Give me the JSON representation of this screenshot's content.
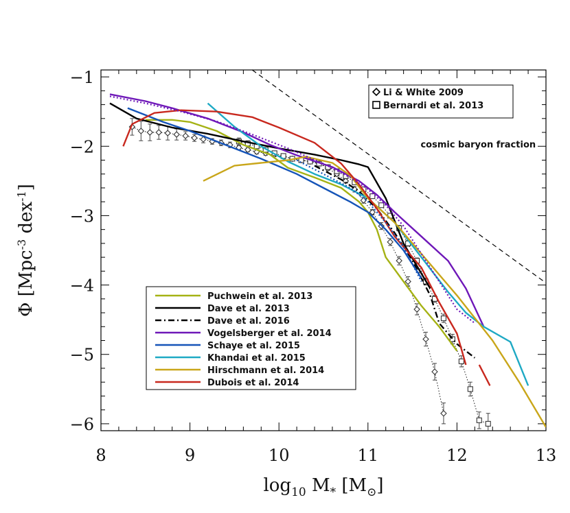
{
  "chart_data": {
    "type": "line",
    "title": "",
    "xlabel_parts": {
      "pre": "log",
      "sub": "10",
      "mid": " M",
      "star": "*",
      "post": " [M",
      "sun": "⊙",
      "end": "]"
    },
    "ylabel_parts": {
      "pre": "Φ [Mpc",
      "sup1": "-3",
      "mid": " dex",
      "sup2": "-1",
      "end": "]"
    },
    "xlim": [
      8,
      13
    ],
    "ylim": [
      -6.1,
      -0.9
    ],
    "xticks": [
      8,
      9,
      10,
      11,
      12,
      13
    ],
    "xtick_labels": [
      "8",
      "9",
      "10",
      "11",
      "12",
      "13"
    ],
    "yticks": [
      -1,
      -2,
      -3,
      -4,
      -5,
      -6
    ],
    "ytick_labels": [
      "−1",
      "−2",
      "−3",
      "−4",
      "−5",
      "−6"
    ],
    "annotation": {
      "text": "cosmic baryon fraction",
      "x": 11.9,
      "y": -1.97
    },
    "baryon_line": {
      "x": [
        9.7,
        13.0
      ],
      "y": [
        -0.9,
        -3.97
      ]
    },
    "legend_obs": [
      {
        "label": "Li & White 2009",
        "marker": "diamond"
      },
      {
        "label": "Bernardi et al. 2013",
        "marker": "square"
      }
    ],
    "series": [
      {
        "name": "Puchwein et al. 2013",
        "color": "#a5b214",
        "dash": "solid",
        "x": [
          8.5,
          8.8,
          9.0,
          9.3,
          9.6,
          9.9,
          10.1,
          10.4,
          10.7,
          10.9,
          11.0,
          11.1,
          11.2,
          11.4,
          11.6,
          11.8,
          12.0
        ],
        "y": [
          -1.62,
          -1.62,
          -1.65,
          -1.78,
          -1.98,
          -2.12,
          -2.31,
          -2.45,
          -2.6,
          -2.8,
          -2.95,
          -3.2,
          -3.6,
          -3.95,
          -4.3,
          -4.6,
          -4.95
        ]
      },
      {
        "name": "Dave et al. 2013",
        "color": "#000000",
        "dash": "solid",
        "x": [
          8.1,
          8.4,
          8.8,
          9.2,
          9.6,
          10.0,
          10.4,
          10.7,
          10.9,
          11.0,
          11.2,
          11.4,
          11.7
        ],
        "y": [
          -1.38,
          -1.6,
          -1.73,
          -1.82,
          -1.93,
          -2.03,
          -2.12,
          -2.2,
          -2.26,
          -2.3,
          -2.75,
          -3.4,
          -4.05
        ]
      },
      {
        "name": "Dave et al. 2016",
        "color": "#000000",
        "dash": "dashdot",
        "x": [
          10.4,
          10.7,
          10.9,
          11.1,
          11.3,
          11.5,
          11.7,
          11.8,
          12.0,
          12.2
        ],
        "y": [
          -2.28,
          -2.48,
          -2.65,
          -2.9,
          -3.25,
          -3.65,
          -4.15,
          -4.55,
          -4.85,
          -5.05
        ]
      },
      {
        "name": "Vogelsberger et al. 2014",
        "color": "#6e17b8",
        "dash": "solid",
        "x": [
          8.1,
          8.5,
          8.8,
          9.2,
          9.6,
          9.9,
          10.2,
          10.6,
          10.9,
          11.1,
          11.3,
          11.6,
          11.9,
          12.1,
          12.3
        ],
        "y": [
          -1.25,
          -1.35,
          -1.45,
          -1.6,
          -1.8,
          -1.98,
          -2.13,
          -2.3,
          -2.5,
          -2.7,
          -2.95,
          -3.3,
          -3.65,
          -4.05,
          -4.6
        ]
      },
      {
        "name": "Schaye et al. 2015",
        "color": "#1554b8",
        "dash": "solid",
        "x": [
          8.3,
          8.7,
          9.0,
          9.4,
          9.8,
          10.2,
          10.5,
          10.8,
          11.0,
          11.2,
          11.4,
          11.6
        ],
        "y": [
          -1.45,
          -1.65,
          -1.78,
          -1.98,
          -2.18,
          -2.4,
          -2.6,
          -2.8,
          -2.95,
          -3.2,
          -3.5,
          -3.9
        ]
      },
      {
        "name": "Khandai et al. 2015",
        "color": "#1ea9c4",
        "dash": "solid",
        "x": [
          9.2,
          9.5,
          9.8,
          10.1,
          10.4,
          10.7,
          11.0,
          11.3,
          11.6,
          11.9,
          12.1,
          12.3,
          12.6,
          12.8
        ],
        "y": [
          -1.38,
          -1.72,
          -2.0,
          -2.22,
          -2.4,
          -2.55,
          -2.75,
          -3.1,
          -3.6,
          -4.1,
          -4.4,
          -4.6,
          -4.82,
          -5.45
        ]
      },
      {
        "name": "Hirschmann et al. 2014",
        "color": "#c9a61a",
        "dash": "solid",
        "x": [
          9.15,
          9.5,
          9.8,
          10.1,
          10.3,
          10.6,
          10.8,
          11.0,
          11.3,
          11.6,
          12.0,
          12.4,
          12.7,
          13.0
        ],
        "y": [
          -2.5,
          -2.28,
          -2.24,
          -2.2,
          -2.15,
          -2.24,
          -2.42,
          -2.75,
          -3.1,
          -3.55,
          -4.15,
          -4.8,
          -5.4,
          -6.05
        ]
      },
      {
        "name": "Dubois et al. 2014",
        "color": "#c8281e",
        "dash": "solid",
        "x": [
          8.25,
          8.35,
          8.6,
          8.9,
          9.3,
          9.7,
          10.0,
          10.4,
          10.7,
          10.9,
          11.1,
          11.3,
          11.6,
          11.8,
          12.0,
          12.1
        ],
        "y": [
          -2.0,
          -1.68,
          -1.52,
          -1.48,
          -1.5,
          -1.58,
          -1.73,
          -1.95,
          -2.25,
          -2.55,
          -2.9,
          -3.3,
          -3.75,
          -4.25,
          -4.7,
          -5.15
        ]
      },
      {
        "name": "Dubois et al. 2014 (massive end)",
        "color": "#c8281e",
        "dash": "solid",
        "x": [
          12.25,
          12.37
        ],
        "y": [
          -5.15,
          -5.45
        ]
      },
      {
        "name": "Vogelsberger et al. 2014 (dotted)",
        "color": "#6e17b8",
        "dash": "dotted",
        "x": [
          8.1,
          8.5,
          8.9,
          9.3,
          9.7,
          10.1,
          10.5,
          10.8,
          11.0,
          11.2,
          11.4,
          11.6,
          11.8,
          12.0,
          12.2
        ],
        "y": [
          -1.28,
          -1.38,
          -1.5,
          -1.64,
          -1.83,
          -2.03,
          -2.25,
          -2.45,
          -2.62,
          -2.85,
          -3.15,
          -3.55,
          -3.95,
          -4.35,
          -4.55
        ]
      },
      {
        "name": "Schaye et al. 2015 (dotted)",
        "color": "#1554b8",
        "dash": "dotted",
        "x": [
          10.2,
          10.5,
          10.8,
          11.0,
          11.2,
          11.4,
          11.6
        ],
        "y": [
          -2.2,
          -2.4,
          -2.6,
          -2.8,
          -3.1,
          -3.45,
          -3.95
        ]
      }
    ],
    "li_white_2009": {
      "x": [
        8.35,
        8.45,
        8.55,
        8.65,
        8.75,
        8.85,
        8.95,
        9.05,
        9.15,
        9.25,
        9.35,
        9.45,
        9.55,
        9.65,
        9.75,
        9.85,
        9.95,
        10.05,
        10.15,
        10.25,
        10.35,
        10.45,
        10.55,
        10.65,
        10.75,
        10.85,
        10.95,
        11.05,
        11.15,
        11.25,
        11.35,
        11.45,
        11.55,
        11.65,
        11.75,
        11.85
      ],
      "y": [
        -1.72,
        -1.78,
        -1.8,
        -1.8,
        -1.81,
        -1.83,
        -1.85,
        -1.88,
        -1.9,
        -1.93,
        -1.95,
        -1.98,
        -2.02,
        -2.05,
        -2.08,
        -2.1,
        -2.12,
        -2.15,
        -2.18,
        -2.2,
        -2.22,
        -2.25,
        -2.32,
        -2.4,
        -2.5,
        -2.62,
        -2.78,
        -2.95,
        -3.15,
        -3.38,
        -3.65,
        -3.95,
        -4.35,
        -4.78,
        -5.25,
        -5.85
      ],
      "err": [
        0.12,
        0.14,
        0.12,
        0.1,
        0.1,
        0.08,
        0.06,
        0.05,
        0.05,
        0.04,
        0.04,
        0.04,
        0.03,
        0.03,
        0.03,
        0.03,
        0.03,
        0.03,
        0.03,
        0.03,
        0.03,
        0.03,
        0.03,
        0.03,
        0.03,
        0.04,
        0.04,
        0.04,
        0.05,
        0.05,
        0.06,
        0.07,
        0.08,
        0.1,
        0.12,
        0.15
      ]
    },
    "bernardi_2013": {
      "x": [
        9.55,
        9.65,
        9.75,
        9.85,
        9.95,
        10.05,
        10.15,
        10.25,
        10.35,
        10.45,
        10.55,
        10.65,
        10.75,
        10.85,
        10.95,
        11.05,
        11.15,
        11.25,
        11.35,
        11.45,
        11.55,
        11.65,
        11.75,
        11.85,
        11.95,
        12.05,
        12.15,
        12.25,
        12.35
      ],
      "y": [
        -1.93,
        -1.96,
        -2.0,
        -2.05,
        -2.1,
        -2.14,
        -2.18,
        -2.2,
        -2.22,
        -2.25,
        -2.3,
        -2.36,
        -2.43,
        -2.52,
        -2.62,
        -2.72,
        -2.85,
        -3.0,
        -3.18,
        -3.4,
        -3.65,
        -3.95,
        -4.2,
        -4.48,
        -4.78,
        -5.1,
        -5.5,
        -5.95,
        -6.0
      ],
      "err": [
        0.05,
        0.04,
        0.03,
        0.03,
        0.03,
        0.03,
        0.03,
        0.03,
        0.03,
        0.03,
        0.03,
        0.03,
        0.03,
        0.03,
        0.03,
        0.03,
        0.03,
        0.03,
        0.04,
        0.04,
        0.04,
        0.05,
        0.05,
        0.06,
        0.07,
        0.08,
        0.1,
        0.12,
        0.15
      ]
    }
  }
}
